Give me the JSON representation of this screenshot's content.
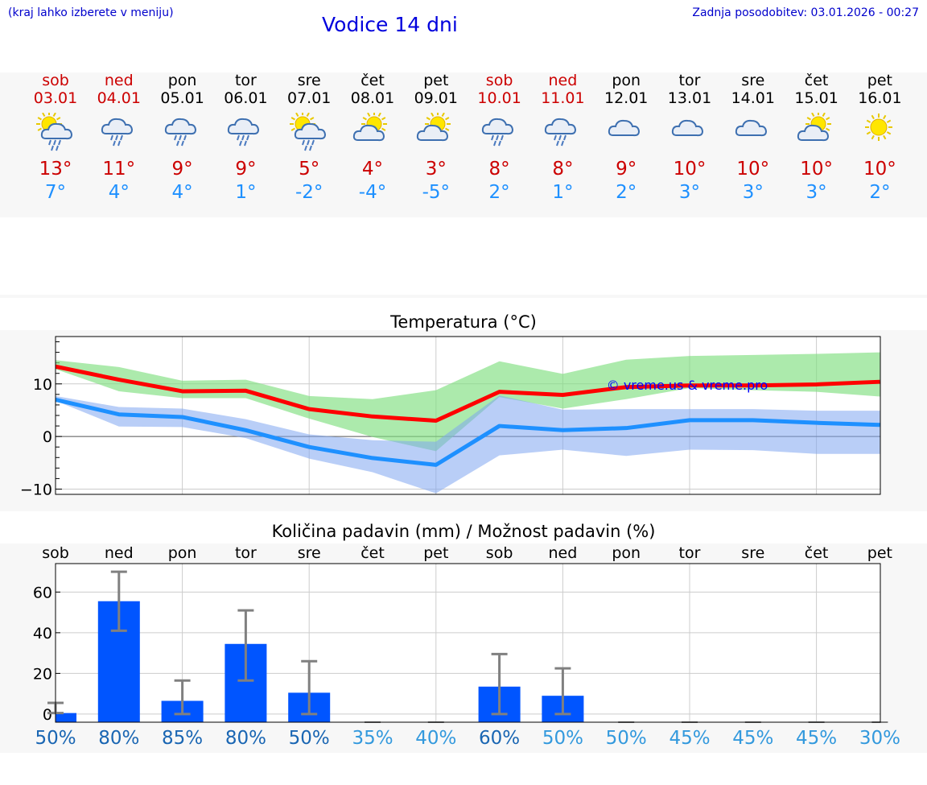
{
  "header": {
    "region_note": "(kraj lahko izberete v meniju)",
    "title": "Vodice 14 dni",
    "updated": "Zadnja posodobitev: 03.01.2026 - 00:27"
  },
  "colors": {
    "weekend": "#cc0000",
    "weekday": "#000000",
    "max": "#cc0000",
    "min": "#1e90ff",
    "bar": "#0055ff",
    "pct_dark": "#1a66b3",
    "pct_light": "#3399dd"
  },
  "days": [
    {
      "name": "sob",
      "date": "03.01",
      "weekend": true,
      "icon": "sun-cloud-rain-icon",
      "max": "13°",
      "min": "7°"
    },
    {
      "name": "ned",
      "date": "04.01",
      "weekend": true,
      "icon": "cloud-rain-icon",
      "max": "11°",
      "min": "4°"
    },
    {
      "name": "pon",
      "date": "05.01",
      "weekend": false,
      "icon": "cloud-rain-icon",
      "max": "9°",
      "min": "4°"
    },
    {
      "name": "tor",
      "date": "06.01",
      "weekend": false,
      "icon": "cloud-rain-icon",
      "max": "9°",
      "min": "1°"
    },
    {
      "name": "sre",
      "date": "07.01",
      "weekend": false,
      "icon": "sun-cloud-rain-icon",
      "max": "5°",
      "min": "-2°"
    },
    {
      "name": "čet",
      "date": "08.01",
      "weekend": false,
      "icon": "sun-cloud-icon",
      "max": "4°",
      "min": "-4°"
    },
    {
      "name": "pet",
      "date": "09.01",
      "weekend": false,
      "icon": "sun-cloud-icon",
      "max": "3°",
      "min": "-5°"
    },
    {
      "name": "sob",
      "date": "10.01",
      "weekend": true,
      "icon": "cloud-rain-icon",
      "max": "8°",
      "min": "2°"
    },
    {
      "name": "ned",
      "date": "11.01",
      "weekend": true,
      "icon": "cloud-rain-icon",
      "max": "8°",
      "min": "1°"
    },
    {
      "name": "pon",
      "date": "12.01",
      "weekend": false,
      "icon": "cloud-icon",
      "max": "9°",
      "min": "2°"
    },
    {
      "name": "tor",
      "date": "13.01",
      "weekend": false,
      "icon": "cloud-icon",
      "max": "10°",
      "min": "3°"
    },
    {
      "name": "sre",
      "date": "14.01",
      "weekend": false,
      "icon": "cloud-icon",
      "max": "10°",
      "min": "3°"
    },
    {
      "name": "čet",
      "date": "15.01",
      "weekend": false,
      "icon": "sun-cloud-icon",
      "max": "10°",
      "min": "3°"
    },
    {
      "name": "pet",
      "date": "16.01",
      "weekend": false,
      "icon": "sun-icon",
      "max": "10°",
      "min": "2°"
    }
  ],
  "chart_data": [
    {
      "type": "line",
      "title": "Temperatura (°C)",
      "watermark": "© vreme.us & vreme.pro",
      "x": [
        0,
        1,
        2,
        3,
        4,
        5,
        6,
        7,
        8,
        9,
        10,
        11,
        12,
        13
      ],
      "ylim": [
        -11,
        19
      ],
      "yticks": [
        -10,
        0,
        10
      ],
      "ytick_labels": [
        "−10",
        "0",
        "10"
      ],
      "grid": true,
      "series": [
        {
          "name": "max",
          "color": "#ff0000",
          "values": [
            13.3,
            10.8,
            8.6,
            8.7,
            5.2,
            3.8,
            3.0,
            8.5,
            7.9,
            9.4,
            9.7,
            9.7,
            9.9,
            10.4
          ]
        },
        {
          "name": "min",
          "color": "#1e90ff",
          "values": [
            7.0,
            4.2,
            3.7,
            1.2,
            -2.0,
            -4.1,
            -5.4,
            2.0,
            1.2,
            1.6,
            3.1,
            3.1,
            2.6,
            2.2
          ]
        }
      ],
      "bands": [
        {
          "name": "max range",
          "color": "#7fdf7f",
          "upper": [
            14.5,
            13.2,
            10.6,
            10.8,
            7.7,
            7.1,
            8.8,
            14.3,
            11.9,
            14.6,
            15.3,
            15.5,
            15.7,
            16.0
          ],
          "lower": [
            12.8,
            8.6,
            7.3,
            7.3,
            3.4,
            -0.1,
            -2.8,
            7.5,
            5.3,
            7.1,
            9.2,
            8.8,
            8.5,
            7.6
          ]
        },
        {
          "name": "min range",
          "color": "#7fa6f0",
          "upper": [
            7.7,
            5.6,
            5.3,
            3.3,
            0.4,
            -0.7,
            -1.0,
            7.8,
            5.1,
            5.2,
            5.2,
            5.2,
            4.9,
            4.9
          ],
          "lower": [
            6.8,
            1.9,
            1.8,
            -0.3,
            -4.2,
            -6.8,
            -10.8,
            -3.6,
            -2.5,
            -3.7,
            -2.5,
            -2.6,
            -3.3,
            -3.3
          ]
        }
      ]
    },
    {
      "type": "bar",
      "title": "Količina padavin (mm) / Možnost padavin (%)",
      "categories": [
        "sob",
        "ned",
        "pon",
        "tor",
        "sre",
        "čet",
        "pet",
        "sob",
        "ned",
        "pon",
        "tor",
        "sre",
        "čet",
        "pet"
      ],
      "values": [
        0.5,
        55.5,
        6.5,
        34.5,
        10.5,
        0,
        0,
        13.5,
        9,
        0,
        0,
        0,
        0,
        0
      ],
      "error_low": [
        0.5,
        41,
        0,
        16.5,
        0,
        0,
        0,
        0,
        0,
        0,
        0,
        0,
        0,
        0
      ],
      "error_high": [
        5.5,
        70,
        16.5,
        51,
        26,
        0,
        0,
        29.5,
        22.5,
        0,
        0,
        0,
        0,
        0
      ],
      "ylim": [
        -4,
        74
      ],
      "yticks": [
        0,
        20,
        40,
        60
      ],
      "grid": true,
      "probability": [
        "50%",
        "80%",
        "85%",
        "80%",
        "50%",
        "35%",
        "40%",
        "60%",
        "50%",
        "50%",
        "45%",
        "45%",
        "45%",
        "30%"
      ]
    }
  ]
}
